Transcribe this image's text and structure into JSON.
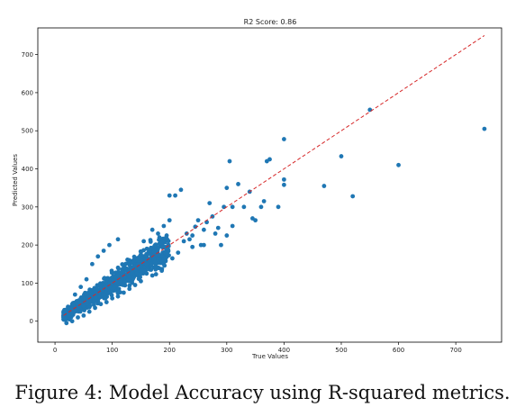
{
  "chart_data": {
    "type": "scatter",
    "title": "R2 Score: 0.86",
    "xlabel": "True Values",
    "ylabel": "Predicted Values",
    "xlim": [
      -30,
      780
    ],
    "ylim": [
      -55,
      770
    ],
    "xticks": [
      0,
      100,
      200,
      300,
      400,
      500,
      600,
      700
    ],
    "yticks": [
      0,
      100,
      200,
      300,
      400,
      500,
      600,
      700
    ],
    "point_color": "#1f77b4",
    "reference_line": {
      "from": [
        15,
        15
      ],
      "to": [
        750,
        750
      ],
      "color": "#d62728",
      "style": "dashed"
    },
    "grid": false,
    "cluster": {
      "x_range": [
        15,
        200
      ],
      "y_range": [
        -10,
        220
      ],
      "approx_points": 1050
    },
    "points": [
      [
        750,
        505
      ],
      [
        600,
        410
      ],
      [
        550,
        555
      ],
      [
        520,
        328
      ],
      [
        500,
        433
      ],
      [
        470,
        355
      ],
      [
        400,
        478
      ],
      [
        400,
        372
      ],
      [
        400,
        358
      ],
      [
        390,
        300
      ],
      [
        375,
        425
      ],
      [
        370,
        420
      ],
      [
        365,
        315
      ],
      [
        360,
        300
      ],
      [
        350,
        265
      ],
      [
        345,
        270
      ],
      [
        340,
        340
      ],
      [
        330,
        300
      ],
      [
        320,
        360
      ],
      [
        310,
        300
      ],
      [
        305,
        420
      ],
      [
        300,
        350
      ],
      [
        295,
        300
      ],
      [
        290,
        200
      ],
      [
        285,
        245
      ],
      [
        280,
        230
      ],
      [
        275,
        275
      ],
      [
        270,
        310
      ],
      [
        265,
        260
      ],
      [
        260,
        240
      ],
      [
        255,
        200
      ],
      [
        250,
        265
      ],
      [
        245,
        248
      ],
      [
        240,
        225
      ],
      [
        235,
        215
      ],
      [
        230,
        230
      ],
      [
        225,
        210
      ],
      [
        220,
        345
      ],
      [
        210,
        330
      ],
      [
        200,
        330
      ],
      [
        200,
        265
      ],
      [
        195,
        225
      ],
      [
        190,
        250
      ],
      [
        185,
        205
      ],
      [
        180,
        230
      ],
      [
        175,
        200
      ],
      [
        170,
        240
      ],
      [
        165,
        185
      ],
      [
        160,
        150
      ],
      [
        155,
        210
      ],
      [
        150,
        175
      ],
      [
        145,
        165
      ],
      [
        140,
        145
      ],
      [
        135,
        130
      ],
      [
        130,
        160
      ],
      [
        120,
        140
      ],
      [
        110,
        120
      ],
      [
        100,
        100
      ],
      [
        90,
        90
      ],
      [
        80,
        95
      ],
      [
        70,
        75
      ],
      [
        60,
        55
      ],
      [
        50,
        40
      ],
      [
        40,
        35
      ],
      [
        30,
        20
      ],
      [
        25,
        5
      ],
      [
        20,
        -5
      ],
      [
        35,
        70
      ],
      [
        45,
        90
      ],
      [
        55,
        110
      ],
      [
        65,
        150
      ],
      [
        75,
        170
      ],
      [
        85,
        185
      ],
      [
        95,
        200
      ],
      [
        110,
        215
      ],
      [
        300,
        225
      ],
      [
        310,
        250
      ],
      [
        260,
        200
      ],
      [
        240,
        195
      ],
      [
        215,
        180
      ],
      [
        205,
        165
      ],
      [
        190,
        150
      ],
      [
        180,
        140
      ],
      [
        170,
        120
      ],
      [
        160,
        125
      ],
      [
        150,
        105
      ],
      [
        140,
        95
      ],
      [
        130,
        85
      ],
      [
        120,
        75
      ],
      [
        110,
        65
      ],
      [
        100,
        60
      ],
      [
        90,
        50
      ],
      [
        80,
        45
      ],
      [
        70,
        35
      ],
      [
        60,
        25
      ],
      [
        50,
        15
      ],
      [
        40,
        10
      ],
      [
        30,
        0
      ]
    ]
  },
  "caption": "Figure 4: Model Accuracy using R-squared metrics."
}
